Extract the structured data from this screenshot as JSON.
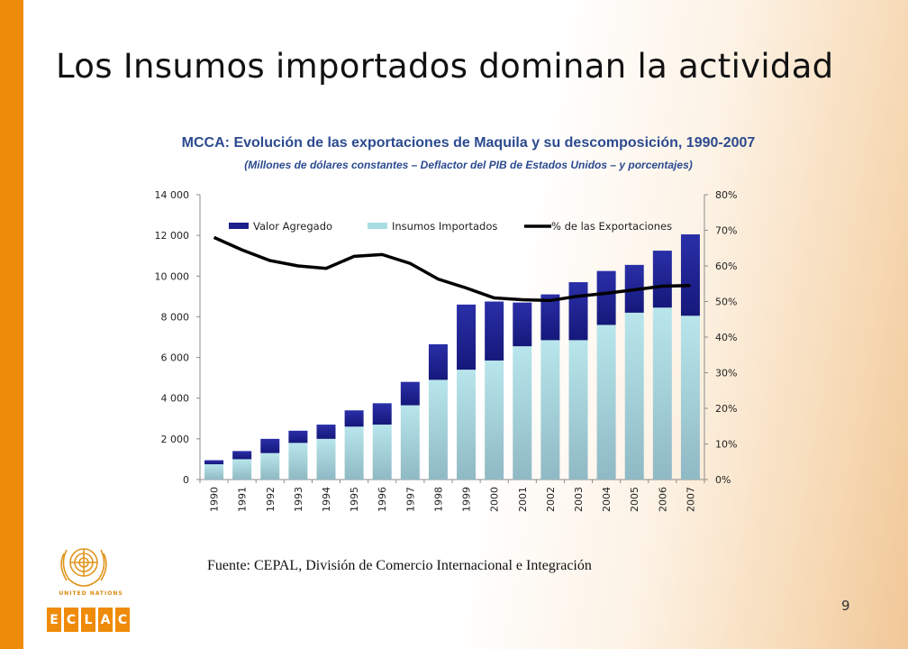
{
  "slide": {
    "title": "Los Insumos importados dominan la actividad",
    "source": "Fuente: CEPAL, División de Comercio Internacional e Integración",
    "page_number": "9",
    "logo_un_text": "UNITED NATIONS",
    "logo_eclac_letters": [
      "E",
      "C",
      "L",
      "A",
      "C"
    ]
  },
  "colors": {
    "accent": "#ef8b0a",
    "title_blue": "#2b4a8f",
    "valor_agregado": "#1c1f8c",
    "insumos_importados": "#a9dde4",
    "line": "#000000"
  },
  "chart_data": {
    "type": "bar",
    "stacked": true,
    "title": "MCCA: Evolución de las exportaciones de Maquila y su descomposición, 1990-2007",
    "subtitle": "(Millones de dólares constantes – Deflactor del PIB de Estados Unidos – y porcentajes)",
    "categories": [
      "1990",
      "1991",
      "1992",
      "1993",
      "1994",
      "1995",
      "1996",
      "1997",
      "1998",
      "1999",
      "2000",
      "2001",
      "2002",
      "2003",
      "2004",
      "2005",
      "2006",
      "2007"
    ],
    "series": [
      {
        "name": "Valor Agregado",
        "axis": "left",
        "kind": "bar",
        "color": "#1c1f8c",
        "values": [
          200,
          400,
          700,
          600,
          700,
          800,
          1050,
          1150,
          1750,
          3200,
          2900,
          2150,
          2250,
          2850,
          2650,
          2350,
          2800,
          4000
        ]
      },
      {
        "name": "Insumos Importados",
        "axis": "left",
        "kind": "bar",
        "color": "#a9dde4",
        "values": [
          750,
          1000,
          1300,
          1800,
          2000,
          2600,
          2700,
          3650,
          4900,
          5400,
          5850,
          6550,
          6850,
          6850,
          7600,
          8200,
          8450,
          8050
        ]
      },
      {
        "name": "% de las Exportaciones",
        "axis": "right",
        "kind": "line",
        "color": "#000000",
        "values": [
          68,
          64.5,
          61.5,
          60,
          59.3,
          62.7,
          63.2,
          60.7,
          56.3,
          53.8,
          51,
          50.5,
          50.3,
          51.5,
          52.3,
          53.3,
          54.3,
          54.5
        ]
      }
    ],
    "y_left": {
      "min": 0,
      "max": 14000,
      "step": 2000,
      "ticks": [
        "0",
        "2 000",
        "4 000",
        "6 000",
        "8 000",
        "10 000",
        "12 000",
        "14 000"
      ]
    },
    "y_right": {
      "min": 0,
      "max": 80,
      "step": 10,
      "ticks": [
        "0%",
        "10%",
        "20%",
        "30%",
        "40%",
        "50%",
        "60%",
        "70%",
        "80%"
      ]
    },
    "legend": {
      "placement": "top"
    },
    "grid": true
  }
}
